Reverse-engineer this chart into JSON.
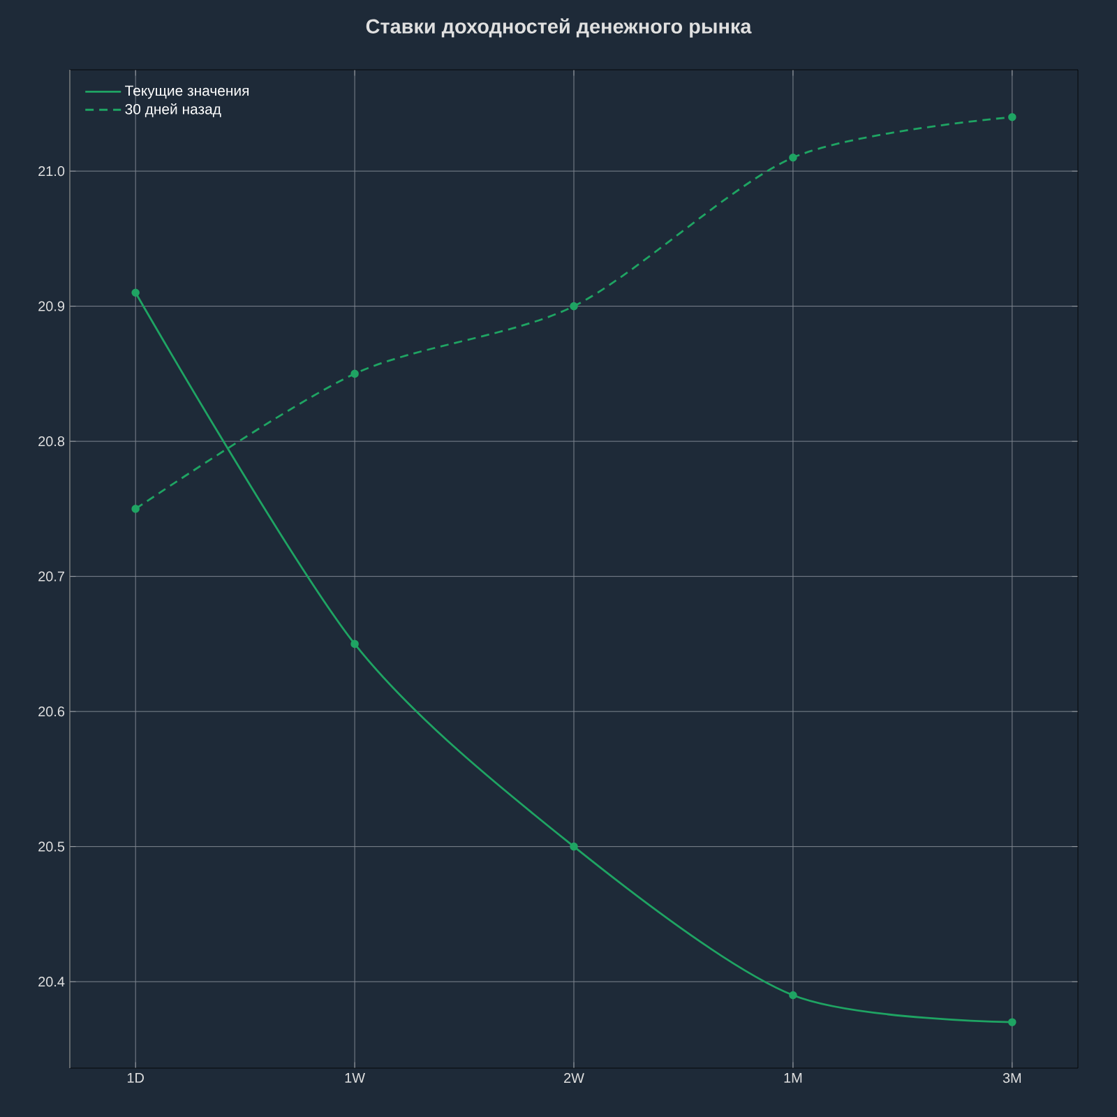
{
  "chart_data": {
    "type": "line",
    "title": "Ставки доходностей денежного рынка",
    "categories": [
      "1D",
      "1W",
      "2W",
      "1M",
      "3M"
    ],
    "series": [
      {
        "name": "Текущие значения",
        "color": "#1fa463",
        "line_style": "solid",
        "values": [
          20.91,
          20.65,
          20.5,
          20.39,
          20.37
        ]
      },
      {
        "name": "30 дней назад",
        "color": "#1fa463",
        "line_style": "dashed",
        "values": [
          20.75,
          20.85,
          20.9,
          21.01,
          21.04
        ]
      }
    ],
    "ylim": [
      20.336,
      21.075
    ],
    "yticks": [
      20.4,
      20.5,
      20.6,
      20.7,
      20.8,
      20.9,
      {
        "value": 21.0,
        "label": "21.0"
      }
    ],
    "grid": true,
    "legend": "top left",
    "marker": "circle"
  }
}
